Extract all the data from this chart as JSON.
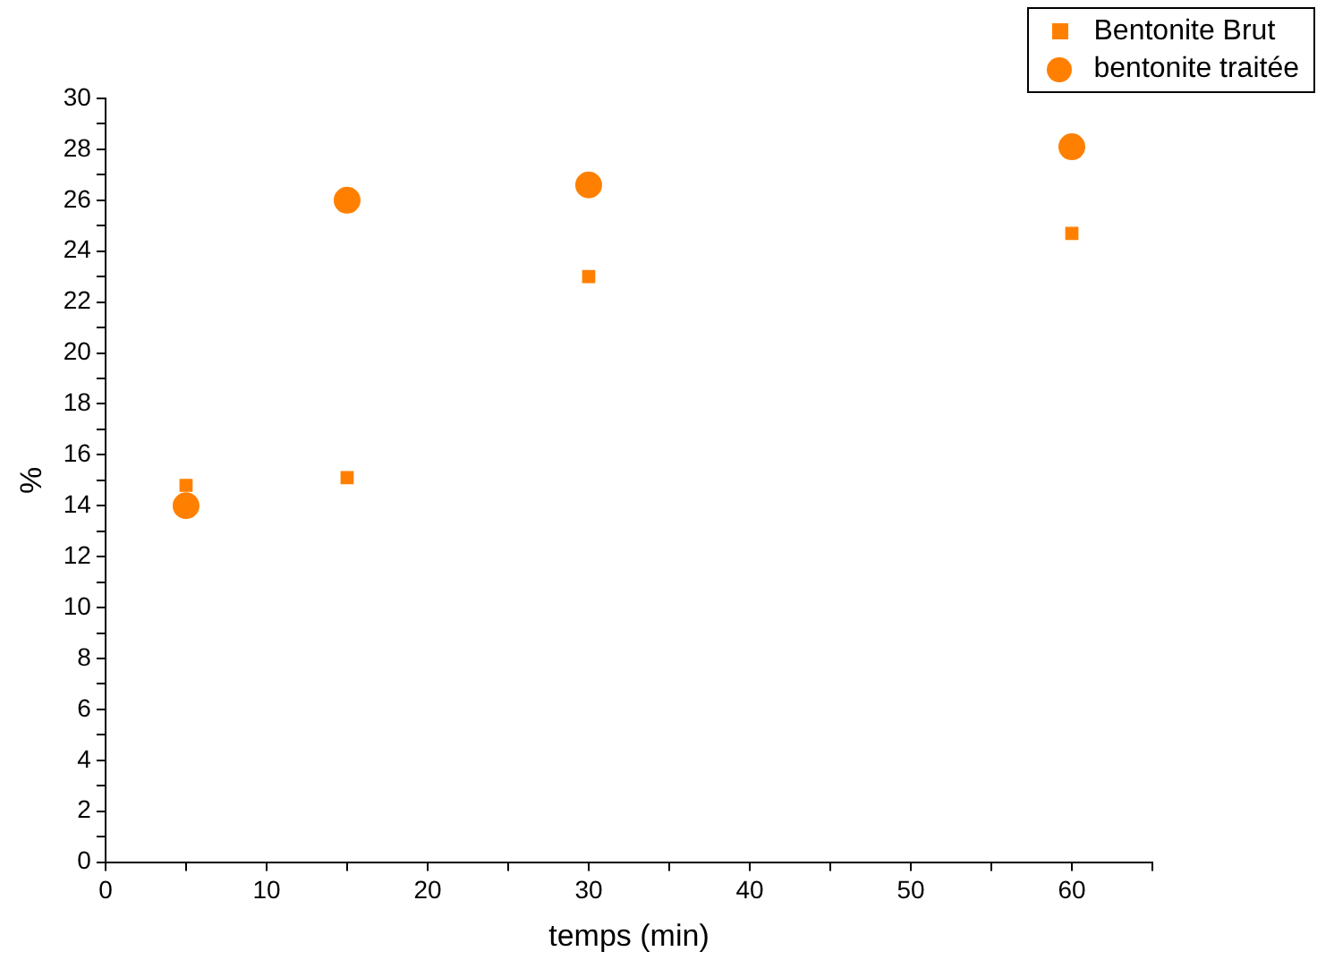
{
  "chart_data": {
    "type": "scatter",
    "xlabel": "temps (min)",
    "ylabel": "%",
    "xlim": [
      0,
      65
    ],
    "xticks": [
      0,
      {
        "value": 5,
        "label": null
      },
      10,
      {
        "value": 15,
        "label": null
      },
      20,
      {
        "value": 25,
        "label": null
      },
      30,
      {
        "value": 35,
        "label": null
      },
      40,
      {
        "value": 45,
        "label": null
      },
      50,
      {
        "value": 55,
        "label": null
      },
      60,
      {
        "value": 65,
        "label": null
      }
    ],
    "ylim": [
      0,
      30
    ],
    "yticks": [
      0,
      {
        "value": 1,
        "label": null
      },
      2,
      {
        "value": 3,
        "label": null
      },
      4,
      {
        "value": 5,
        "label": null
      },
      6,
      {
        "value": 7,
        "label": null
      },
      8,
      {
        "value": 9,
        "label": null
      },
      10,
      {
        "value": 11,
        "label": null
      },
      12,
      {
        "value": 13,
        "label": null
      },
      14,
      {
        "value": 15,
        "label": null
      },
      16,
      {
        "value": 17,
        "label": null
      },
      18,
      {
        "value": 19,
        "label": null
      },
      20,
      {
        "value": 21,
        "label": null
      },
      22,
      {
        "value": 23,
        "label": null
      },
      24,
      {
        "value": 25,
        "label": null
      },
      26,
      {
        "value": 27,
        "label": null
      },
      28,
      {
        "value": 29,
        "label": null
      },
      30
    ],
    "grid": false,
    "legend": "top right",
    "series": [
      {
        "name": "Bentonite Brut",
        "color": "#ff8000",
        "marker": "square",
        "x": [
          5,
          15,
          30,
          60
        ],
        "values": [
          14.8,
          15.1,
          23.0,
          24.7
        ]
      },
      {
        "name": "bentonite traitée",
        "color": "#ff8000",
        "marker": "circle",
        "x": [
          5,
          15,
          30,
          60
        ],
        "values": [
          14.0,
          26.0,
          26.6,
          28.1
        ]
      }
    ]
  }
}
